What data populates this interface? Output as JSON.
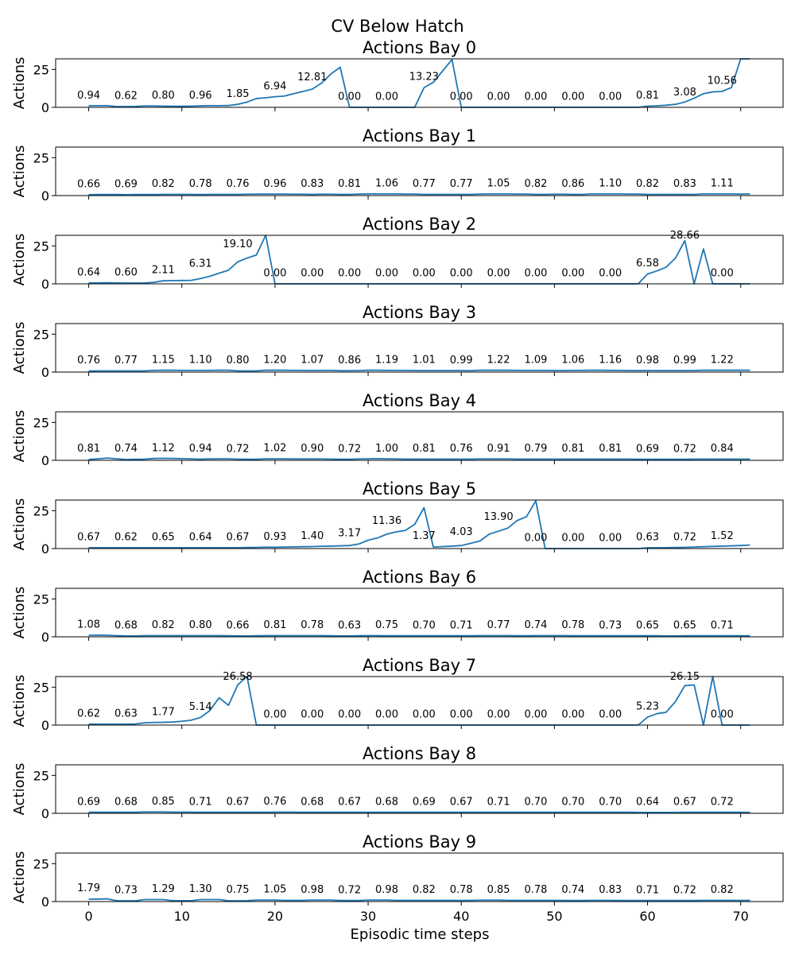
{
  "figure": {
    "title": "CV Below Hatch"
  },
  "chart_data": {
    "type": "line",
    "xlabel": "Episodic time steps",
    "ylabel": "Actions",
    "xlim": [
      -3.55,
      74.55
    ],
    "ylim": [
      0,
      32
    ],
    "xticks": [
      0,
      10,
      20,
      30,
      40,
      50,
      60,
      70
    ],
    "yticks": [
      0,
      25
    ],
    "line_color": "#1f77b4",
    "label_x": [
      0,
      4,
      8,
      12,
      16,
      20,
      24,
      28,
      32,
      36,
      40,
      44,
      48,
      52,
      56,
      60,
      64,
      68
    ],
    "panels": [
      {
        "title": "Actions Bay 0",
        "labels": [
          "0.94",
          "0.62",
          "0.80",
          "0.96",
          "1.85",
          "6.94",
          "12.81",
          "0.00",
          "0.00",
          "13.23",
          "0.00",
          "0.00",
          "0.00",
          "0.00",
          "0.00",
          "0.81",
          "3.08",
          "10.56"
        ],
        "values": [
          1.0,
          1.1,
          1.1,
          0.5,
          0.5,
          0.6,
          0.9,
          0.9,
          0.8,
          0.7,
          0.7,
          0.8,
          1.0,
          1.1,
          1.1,
          1.2,
          2.0,
          3.5,
          5.8,
          6.3,
          7.0,
          7.4,
          9.0,
          10.5,
          12.0,
          16.0,
          22.0,
          26.5,
          0,
          0,
          0,
          0,
          0,
          0,
          0,
          0,
          13.0,
          16.5,
          24.0,
          31.5,
          0,
          0,
          0,
          0,
          0,
          0,
          0,
          0,
          0,
          0,
          0,
          0,
          0,
          0,
          0,
          0,
          0,
          0,
          0,
          0,
          0.8,
          1.0,
          1.4,
          2.0,
          3.5,
          6.0,
          9.0,
          10.2,
          10.5,
          13.0,
          32.0,
          32.0
        ]
      },
      {
        "title": "Actions Bay 1",
        "labels": [
          "0.66",
          "0.69",
          "0.82",
          "0.78",
          "0.76",
          "0.96",
          "0.83",
          "0.81",
          "1.06",
          "0.77",
          "0.77",
          "1.05",
          "0.82",
          "0.86",
          "1.10",
          "0.82",
          "0.83",
          "1.11"
        ],
        "values": [
          0.6,
          0.7,
          0.7,
          0.7,
          0.6,
          0.7,
          0.7,
          0.7,
          0.8,
          0.8,
          0.8,
          0.8,
          0.7,
          0.8,
          0.8,
          0.8,
          0.8,
          0.9,
          1.0,
          1.0,
          1.0,
          1.0,
          0.9,
          0.9,
          0.8,
          0.9,
          0.9,
          0.8,
          0.8,
          1.0,
          1.1,
          1.1,
          1.1,
          1.1,
          1.0,
          1.0,
          0.8,
          0.8,
          0.8,
          0.8,
          0.8,
          0.8,
          1.0,
          1.1,
          1.1,
          1.1,
          1.0,
          1.0,
          0.8,
          0.8,
          0.9,
          0.9,
          0.8,
          0.8,
          1.1,
          1.1,
          1.1,
          1.1,
          1.0,
          1.0,
          0.8,
          0.8,
          0.8,
          0.8,
          0.8,
          0.8,
          1.1,
          1.1,
          1.1,
          1.1,
          1.0,
          1.1
        ]
      },
      {
        "title": "Actions Bay 2",
        "labels": [
          "0.64",
          "0.60",
          "2.11",
          "6.31",
          "19.10",
          "0.00",
          "0.00",
          "0.00",
          "0.00",
          "0.00",
          "0.00",
          "0.00",
          "0.00",
          "0.00",
          "0.00",
          "6.58",
          "28.66",
          "0.00"
        ],
        "values": [
          0.6,
          0.6,
          0.7,
          0.6,
          0.5,
          0.5,
          0.6,
          1.0,
          2.0,
          2.1,
          2.2,
          2.3,
          3.5,
          5.0,
          7.0,
          9.0,
          14.5,
          17.0,
          19.0,
          32.0,
          0,
          0,
          0,
          0,
          0,
          0,
          0,
          0,
          0,
          0,
          0,
          0,
          0,
          0,
          0,
          0,
          0,
          0,
          0,
          0,
          0,
          0,
          0,
          0,
          0,
          0,
          0,
          0,
          0,
          0,
          0,
          0,
          0,
          0,
          0,
          0,
          0,
          0,
          0,
          0,
          6.5,
          8.5,
          11.0,
          17.0,
          28.5,
          0,
          23.0,
          0,
          0,
          0,
          0,
          0
        ]
      },
      {
        "title": "Actions Bay 3",
        "labels": [
          "0.76",
          "0.77",
          "1.15",
          "1.10",
          "0.80",
          "1.20",
          "1.07",
          "0.86",
          "1.19",
          "1.01",
          "0.99",
          "1.22",
          "1.09",
          "1.06",
          "1.16",
          "0.98",
          "0.99",
          "1.22"
        ],
        "values": [
          0.7,
          0.8,
          0.8,
          0.8,
          0.8,
          0.8,
          0.8,
          1.1,
          1.2,
          1.2,
          1.1,
          1.1,
          1.1,
          1.1,
          1.2,
          1.2,
          0.8,
          0.8,
          0.8,
          1.2,
          1.2,
          1.2,
          1.1,
          1.1,
          1.0,
          1.1,
          1.1,
          0.9,
          0.9,
          1.0,
          1.2,
          1.2,
          1.1,
          1.1,
          1.1,
          1.0,
          1.0,
          1.0,
          1.0,
          1.0,
          1.0,
          0.9,
          1.2,
          1.2,
          1.2,
          1.2,
          1.1,
          1.1,
          1.1,
          1.1,
          1.0,
          1.0,
          1.1,
          1.1,
          1.2,
          1.2,
          1.1,
          1.1,
          1.0,
          1.0,
          1.0,
          1.0,
          1.0,
          1.0,
          1.0,
          1.0,
          1.2,
          1.2,
          1.2,
          1.2,
          1.2,
          1.2
        ]
      },
      {
        "title": "Actions Bay 4",
        "labels": [
          "0.81",
          "0.74",
          "1.12",
          "0.94",
          "0.72",
          "1.02",
          "0.90",
          "0.72",
          "1.00",
          "0.81",
          "0.76",
          "0.91",
          "0.79",
          "0.81",
          "0.81",
          "0.69",
          "0.72",
          "0.84"
        ],
        "values": [
          0.6,
          1.0,
          1.5,
          1.0,
          0.5,
          0.7,
          0.8,
          1.2,
          1.3,
          1.2,
          1.1,
          0.9,
          0.8,
          0.9,
          1.0,
          1.0,
          0.8,
          0.7,
          0.7,
          1.0,
          1.0,
          1.0,
          0.9,
          0.9,
          0.9,
          0.9,
          0.8,
          0.7,
          0.7,
          0.9,
          1.0,
          1.1,
          1.0,
          0.9,
          0.8,
          0.8,
          0.8,
          0.8,
          0.8,
          0.8,
          0.8,
          0.8,
          0.9,
          0.9,
          0.9,
          0.9,
          0.8,
          0.8,
          0.8,
          0.8,
          0.8,
          0.8,
          0.8,
          0.8,
          0.8,
          0.8,
          0.8,
          0.8,
          0.8,
          0.7,
          0.7,
          0.7,
          0.7,
          0.7,
          0.7,
          0.8,
          0.8,
          0.8,
          0.8,
          0.8,
          0.8,
          0.8
        ]
      },
      {
        "title": "Actions Bay 5",
        "labels": [
          "0.67",
          "0.62",
          "0.65",
          "0.64",
          "0.67",
          "0.93",
          "1.40",
          "3.17",
          "11.36",
          "1.37",
          "4.03",
          "13.90",
          "0.00",
          "0.00",
          "0.00",
          "0.63",
          "0.72",
          "1.52"
        ],
        "values": [
          0.6,
          0.6,
          0.6,
          0.6,
          0.6,
          0.6,
          0.6,
          0.6,
          0.6,
          0.6,
          0.6,
          0.6,
          0.6,
          0.6,
          0.6,
          0.6,
          0.6,
          0.7,
          0.8,
          0.9,
          0.9,
          1.0,
          1.1,
          1.2,
          1.3,
          1.5,
          1.6,
          1.8,
          2.0,
          3.0,
          5.5,
          7.0,
          9.5,
          11.0,
          12.0,
          16.0,
          27.0,
          1.0,
          1.3,
          1.6,
          2.0,
          3.5,
          5.0,
          9.5,
          11.5,
          13.5,
          18.5,
          21.0,
          31.5,
          0,
          0,
          0,
          0,
          0,
          0,
          0,
          0,
          0,
          0,
          0,
          0.5,
          0.6,
          0.6,
          0.7,
          0.8,
          1.0,
          1.2,
          1.4,
          1.6,
          1.8,
          2.0,
          2.3
        ]
      },
      {
        "title": "Actions Bay 6",
        "labels": [
          "1.08",
          "0.68",
          "0.82",
          "0.80",
          "0.66",
          "0.81",
          "0.78",
          "0.63",
          "0.75",
          "0.70",
          "0.71",
          "0.77",
          "0.74",
          "0.78",
          "0.73",
          "0.65",
          "0.65",
          "0.71"
        ],
        "values": [
          1.0,
          1.1,
          1.0,
          0.8,
          0.6,
          0.6,
          0.8,
          0.8,
          0.8,
          0.8,
          0.8,
          0.8,
          0.8,
          0.8,
          0.8,
          0.7,
          0.6,
          0.6,
          0.7,
          0.8,
          0.8,
          0.8,
          0.8,
          0.8,
          0.8,
          0.8,
          0.7,
          0.6,
          0.6,
          0.7,
          0.8,
          0.8,
          0.7,
          0.7,
          0.7,
          0.7,
          0.7,
          0.7,
          0.7,
          0.7,
          0.7,
          0.7,
          0.8,
          0.8,
          0.8,
          0.8,
          0.7,
          0.7,
          0.8,
          0.8,
          0.8,
          0.8,
          0.7,
          0.7,
          0.7,
          0.7,
          0.7,
          0.7,
          0.7,
          0.7,
          0.7,
          0.7,
          0.6,
          0.6,
          0.7,
          0.7,
          0.7,
          0.7,
          0.7,
          0.7,
          0.7,
          0.7
        ]
      },
      {
        "title": "Actions Bay 7",
        "labels": [
          "0.62",
          "0.63",
          "1.77",
          "5.14",
          "26.58",
          "0.00",
          "0.00",
          "0.00",
          "0.00",
          "0.00",
          "0.00",
          "0.00",
          "0.00",
          "0.00",
          "0.00",
          "5.23",
          "26.15",
          "0.00"
        ],
        "values": [
          0.6,
          0.6,
          0.6,
          0.6,
          0.6,
          0.7,
          1.5,
          1.7,
          1.8,
          2.0,
          2.5,
          3.2,
          5.0,
          9.5,
          18.0,
          13.0,
          26.5,
          32.0,
          0,
          0,
          0,
          0,
          0,
          0,
          0,
          0,
          0,
          0,
          0,
          0,
          0,
          0,
          0,
          0,
          0,
          0,
          0,
          0,
          0,
          0,
          0,
          0,
          0,
          0,
          0,
          0,
          0,
          0,
          0,
          0,
          0,
          0,
          0,
          0,
          0,
          0,
          0,
          0,
          0,
          0,
          5.2,
          7.5,
          8.5,
          15.5,
          26.0,
          26.5,
          0,
          32.0,
          0,
          0,
          0,
          0
        ]
      },
      {
        "title": "Actions Bay 8",
        "labels": [
          "0.69",
          "0.68",
          "0.85",
          "0.71",
          "0.67",
          "0.76",
          "0.68",
          "0.67",
          "0.68",
          "0.69",
          "0.67",
          "0.71",
          "0.70",
          "0.70",
          "0.70",
          "0.64",
          "0.67",
          "0.72"
        ],
        "values": [
          0.7,
          0.7,
          0.7,
          0.7,
          0.7,
          0.7,
          0.9,
          0.9,
          0.9,
          0.8,
          0.8,
          0.8,
          0.7,
          0.7,
          0.7,
          0.7,
          0.7,
          0.7,
          0.7,
          0.7,
          0.8,
          0.8,
          0.8,
          0.7,
          0.7,
          0.7,
          0.7,
          0.7,
          0.7,
          0.7,
          0.7,
          0.7,
          0.7,
          0.7,
          0.7,
          0.7,
          0.7,
          0.7,
          0.7,
          0.7,
          0.7,
          0.7,
          0.7,
          0.7,
          0.7,
          0.7,
          0.7,
          0.7,
          0.7,
          0.7,
          0.7,
          0.7,
          0.7,
          0.7,
          0.7,
          0.7,
          0.7,
          0.7,
          0.7,
          0.6,
          0.6,
          0.6,
          0.6,
          0.6,
          0.7,
          0.7,
          0.7,
          0.7,
          0.7,
          0.7,
          0.7,
          0.6
        ]
      },
      {
        "title": "Actions Bay 9",
        "labels": [
          "1.79",
          "0.73",
          "1.29",
          "1.30",
          "0.75",
          "1.05",
          "0.98",
          "0.72",
          "0.98",
          "0.82",
          "0.78",
          "0.85",
          "0.78",
          "0.74",
          "0.83",
          "0.71",
          "0.72",
          "0.82"
        ],
        "values": [
          1.5,
          1.6,
          1.8,
          0.5,
          0.5,
          0.5,
          1.3,
          1.3,
          1.3,
          0.6,
          0.6,
          0.6,
          1.3,
          1.3,
          1.3,
          0.5,
          0.5,
          0.6,
          1.0,
          1.0,
          1.0,
          0.8,
          0.8,
          0.8,
          1.0,
          1.0,
          1.0,
          0.7,
          0.7,
          0.7,
          1.0,
          1.0,
          1.0,
          0.8,
          0.8,
          0.8,
          0.8,
          0.8,
          0.8,
          0.8,
          0.8,
          0.8,
          0.9,
          0.9,
          0.9,
          0.8,
          0.8,
          0.8,
          0.8,
          0.8,
          0.8,
          0.7,
          0.7,
          0.7,
          0.8,
          0.8,
          0.8,
          0.7,
          0.7,
          0.7,
          0.7,
          0.7,
          0.7,
          0.7,
          0.7,
          0.7,
          0.8,
          0.8,
          0.8,
          0.8,
          0.8,
          0.8
        ]
      }
    ]
  }
}
